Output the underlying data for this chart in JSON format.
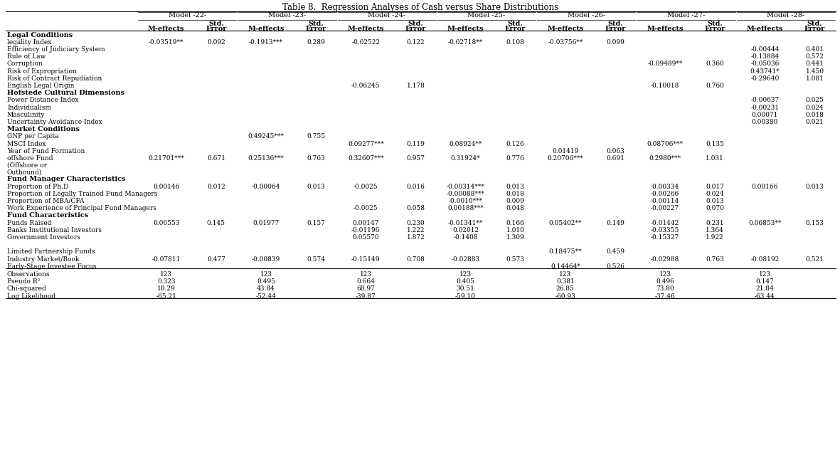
{
  "title": "Table 8.  Regression Analyses of Cash versus Share Distributions",
  "models": [
    "Model -22-",
    "Model -23-",
    "Model -24-",
    "Model -25-",
    "Model -26-",
    "Model -27-",
    "Model -28-"
  ],
  "row_groups": [
    {
      "label": "Legal Conditions",
      "bold": true,
      "rows": [
        {
          "label": "legality Index",
          "values": [
            "-0.03519**",
            "0.092",
            "-0.1913***",
            "0.289",
            "-0.02522",
            "0.122",
            "-0.02718**",
            "0.108",
            "-0.03756**",
            "0.099",
            "",
            "",
            "",
            ""
          ]
        },
        {
          "label": "Efficiency of Judiciary System",
          "values": [
            "",
            "",
            "",
            "",
            "",
            "",
            "",
            "",
            "",
            "",
            "",
            "",
            "-0.00444",
            "0.401"
          ]
        },
        {
          "label": "Rule of Law",
          "values": [
            "",
            "",
            "",
            "",
            "",
            "",
            "",
            "",
            "",
            "",
            "",
            "",
            "-0.13884",
            "0.572"
          ]
        },
        {
          "label": "Corruption",
          "values": [
            "",
            "",
            "",
            "",
            "",
            "",
            "",
            "",
            "",
            "",
            "-0.09489**",
            "0.360",
            "-0.05036",
            "0.441"
          ]
        },
        {
          "label": "Risk of Expropriation",
          "values": [
            "",
            "",
            "",
            "",
            "",
            "",
            "",
            "",
            "",
            "",
            "",
            "",
            "0.43741*",
            "1.450"
          ]
        },
        {
          "label": "Risk of Contract Repudiation",
          "values": [
            "",
            "",
            "",
            "",
            "",
            "",
            "",
            "",
            "",
            "",
            "",
            "",
            "-0.29640",
            "1.081"
          ]
        },
        {
          "label": "English Legal Origin",
          "values": [
            "",
            "",
            "",
            "",
            "-0.06245",
            "1.178",
            "",
            "",
            "",
            "",
            "-0.10018",
            "0.760",
            "",
            ""
          ]
        }
      ]
    },
    {
      "label": "Hofstede Cultural Dimensions",
      "bold": true,
      "rows": [
        {
          "label": "Power Distance Index",
          "values": [
            "",
            "",
            "",
            "",
            "",
            "",
            "",
            "",
            "",
            "",
            "",
            "",
            "-0.00637",
            "0.025"
          ]
        },
        {
          "label": "Individualism",
          "values": [
            "",
            "",
            "",
            "",
            "",
            "",
            "",
            "",
            "",
            "",
            "",
            "",
            "-0.00231",
            "0.024"
          ]
        },
        {
          "label": "Masculinity",
          "values": [
            "",
            "",
            "",
            "",
            "",
            "",
            "",
            "",
            "",
            "",
            "",
            "",
            "0.00071",
            "0.018"
          ]
        },
        {
          "label": "Uncertainty Avoidance Index",
          "values": [
            "",
            "",
            "",
            "",
            "",
            "",
            "",
            "",
            "",
            "",
            "",
            "",
            "0.00380",
            "0.021"
          ]
        }
      ]
    },
    {
      "label": "Market Conditions",
      "bold": true,
      "rows": [
        {
          "label": "GNP per Capita",
          "values": [
            "",
            "",
            "0.49245***",
            "0.755",
            "",
            "",
            "",
            "",
            "",
            "",
            "",
            "",
            "",
            ""
          ]
        },
        {
          "label": "MSCI Index",
          "values": [
            "",
            "",
            "",
            "",
            "0.09277***",
            "0.119",
            "0.08924**",
            "0.126",
            "",
            "",
            "0.08706***",
            "0.135",
            "",
            ""
          ]
        },
        {
          "label": "Year of Fund Formation",
          "values": [
            "",
            "",
            "",
            "",
            "",
            "",
            "",
            "",
            "0.01419",
            "0.063",
            "",
            "",
            "",
            ""
          ]
        },
        {
          "label": "offshore Fund",
          "extra_lines": [
            "(Offshore or",
            "Outbound)"
          ],
          "values": [
            "0.21701***",
            "0.671",
            "0.25136***",
            "0.763",
            "0.32607***",
            "0.957",
            "0.31924*",
            "0.776",
            "0.20706***",
            "0.691",
            "0.2980***",
            "1.031",
            "",
            ""
          ]
        }
      ]
    },
    {
      "label": "Fund Manager Characteristics",
      "bold": true,
      "rows": [
        {
          "label": "Proportion of Ph.D",
          "values": [
            "0.00146",
            "0.012",
            "-0.00064",
            "0.013",
            "-0.0025",
            "0.016",
            "-0.00314***",
            "0.013",
            "",
            "",
            "-0.00334",
            "0.017",
            "0.00166",
            "0.013"
          ]
        },
        {
          "label": "Proportion of Legally Trained Fund Managers",
          "values": [
            "",
            "",
            "",
            "",
            "",
            "",
            "-0.00088***",
            "0.018",
            "",
            "",
            "-0.00266",
            "0.024",
            "",
            ""
          ]
        },
        {
          "label": "Proportion of MBA/CFA",
          "values": [
            "",
            "",
            "",
            "",
            "",
            "",
            "-0.0010***",
            "0.009",
            "",
            "",
            "-0.00114",
            "0.013",
            "",
            ""
          ]
        },
        {
          "label": "Work Experience of Principal Fund Managers",
          "values": [
            "",
            "",
            "",
            "",
            "-0.0025",
            "0.058",
            "0.00188***",
            "0.048",
            "",
            "",
            "-0.00227",
            "0.070",
            "",
            ""
          ]
        }
      ]
    },
    {
      "label": "Fund Characteristics",
      "bold": true,
      "rows": [
        {
          "label": "Funds Raised",
          "values": [
            "0.06553",
            "0.145",
            "0.01977",
            "0.157",
            "0.00147",
            "0.230",
            "-0.01341**",
            "0.166",
            "0.05402**",
            "0.149",
            "-0.01442",
            "0.231",
            "0.06853**",
            "0.153"
          ]
        },
        {
          "label": "Banks Institutional Investors",
          "values": [
            "",
            "",
            "",
            "",
            "-0.01196",
            "1.222",
            "0.02012",
            "1.010",
            "",
            "",
            "-0.03355",
            "1.364",
            "",
            ""
          ]
        },
        {
          "label": "Government Investors",
          "values": [
            "",
            "",
            "",
            "",
            "0.05570",
            "1.872",
            "-0.1408",
            "1.309",
            "",
            "",
            "-0.15327",
            "1.922",
            "",
            ""
          ]
        },
        {
          "label": "",
          "values": [
            "",
            "",
            "",
            "",
            "",
            "",
            "",
            "",
            "",
            "",
            "",
            "",
            "",
            ""
          ]
        },
        {
          "label": "Limited Partnership Funds",
          "values": [
            "",
            "",
            "",
            "",
            "",
            "",
            "",
            "",
            "0.18475**",
            "0.459",
            "",
            "",
            "",
            ""
          ]
        },
        {
          "label": "Industry Market/Book",
          "values": [
            "-0.07811",
            "0.477",
            "-0.00839",
            "0.574",
            "-0.15149",
            "0.708",
            "-0.02883",
            "0.573",
            "",
            "",
            "-0.02988",
            "0.763",
            "-0.08192",
            "0.521"
          ]
        },
        {
          "label": "Early-Stage Investee Focus",
          "values": [
            "",
            "",
            "",
            "",
            "",
            "",
            "",
            "",
            "0.14464*",
            "0.526",
            "",
            "",
            "",
            ""
          ]
        }
      ]
    }
  ],
  "footer_rows": [
    {
      "label": "Observations",
      "values": [
        "123",
        "",
        "123",
        "",
        "123",
        "",
        "123",
        "",
        "123",
        "",
        "123",
        "",
        "123",
        ""
      ]
    },
    {
      "label": "Pseudo R²",
      "values": [
        "0.323",
        "",
        "0.495",
        "",
        "0.664",
        "",
        "0.405",
        "",
        "0.381",
        "",
        "0.496",
        "",
        "0.147",
        ""
      ]
    },
    {
      "label": "Chi-squared",
      "values": [
        "18.29",
        "",
        "43.84",
        "",
        "68.97",
        "",
        "30.51",
        "",
        "26.85",
        "",
        "73.80",
        "",
        "21.84",
        ""
      ]
    },
    {
      "label": "Log Likelihood",
      "values": [
        "-65.21",
        "",
        "-52.44",
        "",
        "-39.87",
        "",
        "-59.10",
        "",
        "-60.93",
        "",
        "-37.46",
        "",
        "-63.44",
        ""
      ]
    }
  ]
}
